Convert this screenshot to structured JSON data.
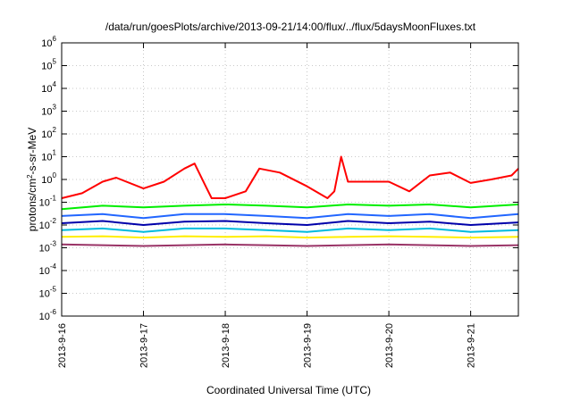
{
  "chart_data": {
    "type": "line",
    "title": "/data/run/goesPlots/archive/2013-09-21/14:00/flux/../flux/5daysMoonFluxes.txt",
    "xlabel": "Coordinated Universal Time (UTC)",
    "ylabel_prefix": "protons/cm",
    "ylabel_sup": "2",
    "ylabel_suffix": "-s-sr-MeV",
    "y_scale": "log",
    "ylim": [
      1e-06,
      1000000.0
    ],
    "y_ticks": [
      {
        "base": "10",
        "exp": "-6",
        "value": 1e-06
      },
      {
        "base": "10",
        "exp": "-5",
        "value": 1e-05
      },
      {
        "base": "10",
        "exp": "-4",
        "value": 0.0001
      },
      {
        "base": "10",
        "exp": "-3",
        "value": 0.001
      },
      {
        "base": "10",
        "exp": "-2",
        "value": 0.01
      },
      {
        "base": "10",
        "exp": "-1",
        "value": 0.1
      },
      {
        "base": "10",
        "exp": "0",
        "value": 1
      },
      {
        "base": "10",
        "exp": "1",
        "value": 10
      },
      {
        "base": "10",
        "exp": "2",
        "value": 100
      },
      {
        "base": "10",
        "exp": "3",
        "value": 1000
      },
      {
        "base": "10",
        "exp": "4",
        "value": 10000
      },
      {
        "base": "10",
        "exp": "5",
        "value": 100000
      },
      {
        "base": "10",
        "exp": "6",
        "value": 1000000
      }
    ],
    "x_range": [
      "2013-09-16 00:00",
      "2013-09-21 14:00"
    ],
    "x_ticks": [
      "2013-9-16",
      "2013-9-17",
      "2013-9-18",
      "2013-9-19",
      "2013-9-20",
      "2013-9-21"
    ],
    "grid": true,
    "colors": {
      "red": "#ff0000",
      "green": "#00ee00",
      "cyan": "#00bbdd",
      "blue": "#2266ff",
      "darkblue": "#0000aa",
      "yellow": "#ffee00",
      "purple": "#993366"
    },
    "series": [
      {
        "color_key": "red",
        "x": [
          "2013-09-16 00:00",
          "2013-09-16 06:00",
          "2013-09-16 12:00",
          "2013-09-16 16:00",
          "2013-09-17 00:00",
          "2013-09-17 06:00",
          "2013-09-17 12:00",
          "2013-09-17 15:00",
          "2013-09-17 18:00",
          "2013-09-17 20:00",
          "2013-09-18 00:00",
          "2013-09-18 06:00",
          "2013-09-18 10:00",
          "2013-09-18 16:00",
          "2013-09-19 00:00",
          "2013-09-19 06:00",
          "2013-09-19 08:00",
          "2013-09-19 10:00",
          "2013-09-19 12:00",
          "2013-09-20 00:00",
          "2013-09-20 06:00",
          "2013-09-20 12:00",
          "2013-09-20 18:00",
          "2013-09-21 00:00",
          "2013-09-21 06:00",
          "2013-09-21 12:00",
          "2013-09-21 14:00"
        ],
        "y": [
          0.15,
          0.25,
          0.8,
          1.2,
          0.4,
          0.8,
          3,
          5,
          0.6,
          0.15,
          0.15,
          0.3,
          3,
          2,
          0.5,
          0.15,
          0.3,
          10,
          0.8,
          0.8,
          0.3,
          1.5,
          2,
          0.7,
          1,
          1.5,
          3
        ]
      },
      {
        "color_key": "green",
        "x": [
          "2013-09-16 00:00",
          "2013-09-16 12:00",
          "2013-09-17 00:00",
          "2013-09-17 12:00",
          "2013-09-18 00:00",
          "2013-09-18 12:00",
          "2013-09-19 00:00",
          "2013-09-19 12:00",
          "2013-09-20 00:00",
          "2013-09-20 12:00",
          "2013-09-21 00:00",
          "2013-09-21 14:00"
        ],
        "y": [
          0.05,
          0.07,
          0.06,
          0.07,
          0.08,
          0.07,
          0.06,
          0.08,
          0.07,
          0.08,
          0.06,
          0.08
        ]
      },
      {
        "color_key": "blue",
        "x": [
          "2013-09-16 00:00",
          "2013-09-16 12:00",
          "2013-09-17 00:00",
          "2013-09-17 12:00",
          "2013-09-18 00:00",
          "2013-09-18 12:00",
          "2013-09-19 00:00",
          "2013-09-19 12:00",
          "2013-09-20 00:00",
          "2013-09-20 12:00",
          "2013-09-21 00:00",
          "2013-09-21 14:00"
        ],
        "y": [
          0.025,
          0.03,
          0.02,
          0.03,
          0.03,
          0.025,
          0.02,
          0.03,
          0.025,
          0.03,
          0.02,
          0.03
        ]
      },
      {
        "color_key": "darkblue",
        "x": [
          "2013-09-16 00:00",
          "2013-09-16 12:00",
          "2013-09-17 00:00",
          "2013-09-17 12:00",
          "2013-09-18 00:00",
          "2013-09-18 12:00",
          "2013-09-19 00:00",
          "2013-09-19 12:00",
          "2013-09-20 00:00",
          "2013-09-20 12:00",
          "2013-09-21 00:00",
          "2013-09-21 14:00"
        ],
        "y": [
          0.012,
          0.015,
          0.01,
          0.014,
          0.015,
          0.012,
          0.01,
          0.015,
          0.012,
          0.014,
          0.01,
          0.013
        ]
      },
      {
        "color_key": "cyan",
        "x": [
          "2013-09-16 00:00",
          "2013-09-16 12:00",
          "2013-09-17 00:00",
          "2013-09-17 12:00",
          "2013-09-18 00:00",
          "2013-09-18 12:00",
          "2013-09-19 00:00",
          "2013-09-19 12:00",
          "2013-09-20 00:00",
          "2013-09-20 12:00",
          "2013-09-21 00:00",
          "2013-09-21 14:00"
        ],
        "y": [
          0.006,
          0.007,
          0.005,
          0.007,
          0.007,
          0.006,
          0.005,
          0.007,
          0.006,
          0.007,
          0.005,
          0.006
        ]
      },
      {
        "color_key": "yellow",
        "x": [
          "2013-09-16 00:00",
          "2013-09-16 12:00",
          "2013-09-17 00:00",
          "2013-09-17 12:00",
          "2013-09-18 00:00",
          "2013-09-18 12:00",
          "2013-09-19 00:00",
          "2013-09-19 12:00",
          "2013-09-20 00:00",
          "2013-09-20 12:00",
          "2013-09-21 00:00",
          "2013-09-21 14:00"
        ],
        "y": [
          0.003,
          0.0032,
          0.0028,
          0.0032,
          0.003,
          0.0032,
          0.0028,
          0.003,
          0.0032,
          0.003,
          0.0028,
          0.003
        ]
      },
      {
        "color_key": "purple",
        "x": [
          "2013-09-16 00:00",
          "2013-09-16 12:00",
          "2013-09-17 00:00",
          "2013-09-17 12:00",
          "2013-09-18 00:00",
          "2013-09-18 12:00",
          "2013-09-19 00:00",
          "2013-09-19 12:00",
          "2013-09-20 00:00",
          "2013-09-20 12:00",
          "2013-09-21 00:00",
          "2013-09-21 14:00"
        ],
        "y": [
          0.0014,
          0.0013,
          0.0012,
          0.0013,
          0.0014,
          0.0013,
          0.0012,
          0.0013,
          0.0014,
          0.0013,
          0.0012,
          0.0013
        ]
      }
    ]
  }
}
